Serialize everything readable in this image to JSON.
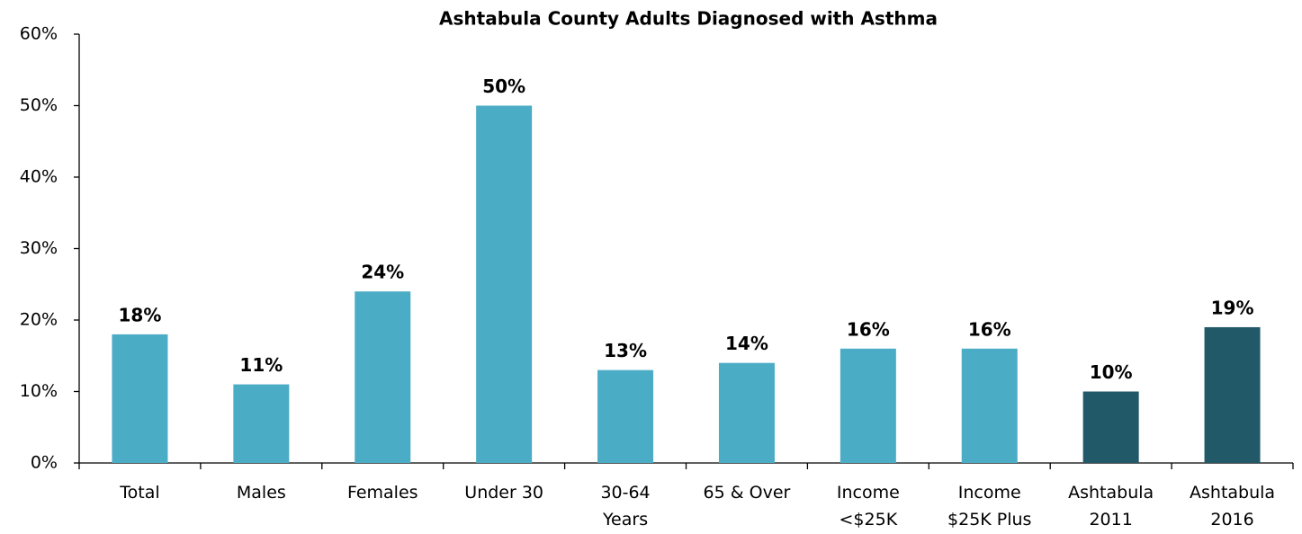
{
  "chart_data": {
    "type": "bar",
    "title": "Ashtabula County Adults Diagnosed with Asthma",
    "categories": [
      "Total",
      "Males",
      "Females",
      "Under 30",
      "30-64\nYears",
      "65 & Over",
      "Income\n<$25K",
      "Income\n$25K Plus",
      "Ashtabula\n2011",
      "Ashtabula\n2016"
    ],
    "values": [
      18,
      11,
      24,
      50,
      13,
      14,
      16,
      16,
      10,
      19
    ],
    "value_labels": [
      "18%",
      "11%",
      "24%",
      "50%",
      "13%",
      "14%",
      "16%",
      "16%",
      "10%",
      "19%"
    ],
    "colors": [
      "#4bacc6",
      "#4bacc6",
      "#4bacc6",
      "#4bacc6",
      "#4bacc6",
      "#4bacc6",
      "#4bacc6",
      "#4bacc6",
      "#215968",
      "#215968"
    ],
    "ylim": [
      0,
      60
    ],
    "yticks": [
      {
        "value": 0,
        "label": "0%"
      },
      {
        "value": 10,
        "label": "10%"
      },
      {
        "value": 20,
        "label": "20%"
      },
      {
        "value": 30,
        "label": "30%"
      },
      {
        "value": 40,
        "label": "40%"
      },
      {
        "value": 50,
        "label": "50%"
      },
      {
        "value": 60,
        "label": "60%"
      }
    ],
    "grid": false
  }
}
